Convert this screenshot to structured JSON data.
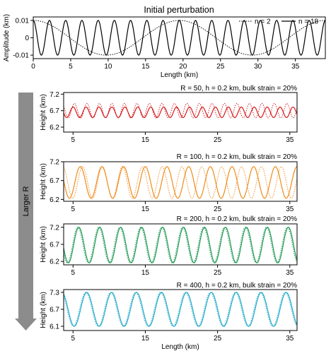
{
  "chart_data": [
    {
      "type": "line",
      "title": "Initial perturbation",
      "xlabel": "Length (km)",
      "ylabel": "Amplitude (km)",
      "xlim": [
        0,
        39
      ],
      "ylim": [
        -0.012,
        0.012
      ],
      "xticks": [
        "0",
        "5",
        "10",
        "15",
        "20",
        "25",
        "30",
        "35"
      ],
      "yticks": [
        "0.01",
        "0",
        "-0.01"
      ],
      "legend_position": "top-right",
      "series": [
        {
          "name": "n = 2",
          "style": "dotted",
          "color": "#000000",
          "wavelength_km": 19.5,
          "amplitude_km": 0.01,
          "phase": "cosine"
        },
        {
          "name": "n = 18",
          "style": "solid",
          "color": "#000000",
          "wavelength_km": 2.1667,
          "amplitude_km": 0.01,
          "phase": "cosine"
        }
      ]
    },
    {
      "type": "line",
      "title": "R = 50, h = 0.2 km, bulk strain = 20%",
      "ylabel": "Height (km)",
      "xlim": [
        3.7,
        36
      ],
      "ylim": [
        6.05,
        7.25
      ],
      "xticks": [
        "5",
        "15",
        "25",
        "35"
      ],
      "yticks": [
        "7.2",
        "6.7",
        "6.2"
      ],
      "color": "#d7191c",
      "series": [
        {
          "style": "dotted",
          "mean": 6.7,
          "amplitude": 0.22,
          "wavelength_km": 1.73,
          "phase": 0.0
        },
        {
          "style": "solid",
          "mean": 6.65,
          "amplitude": 0.16,
          "wavelength_km": 1.79,
          "phase": 1.2
        }
      ]
    },
    {
      "type": "line",
      "title": "R = 100, h = 0.2 km, bulk strain = 20%",
      "ylabel": "Height (km)",
      "xlim": [
        3.7,
        36
      ],
      "ylim": [
        6.15,
        7.2
      ],
      "xticks": [
        "5",
        "15",
        "25",
        "35"
      ],
      "yticks": [
        "7.2",
        "6.7",
        "6.2"
      ],
      "color": "#ef8a17",
      "series": [
        {
          "style": "dotted",
          "mean": 6.65,
          "amplitude": 0.42,
          "wavelength_km": 2.75,
          "phase": -0.3
        },
        {
          "style": "solid",
          "mean": 6.65,
          "amplitude": 0.42,
          "wavelength_km": 3.0,
          "phase": 0.0
        }
      ]
    },
    {
      "type": "line",
      "title": "R = 200, h = 0.2 km, bulk strain = 20%",
      "ylabel": "Height (km)",
      "xlim": [
        3.7,
        36
      ],
      "ylim": [
        6.1,
        7.3
      ],
      "xticks": [
        "5",
        "15",
        "25",
        "35"
      ],
      "yticks": [
        "7.2",
        "6.7",
        "6.2"
      ],
      "color": "#1a9850",
      "series": [
        {
          "style": "dotted",
          "mean": 6.68,
          "amplitude": 0.52,
          "wavelength_km": 2.9,
          "phase": 0.05
        },
        {
          "style": "solid",
          "mean": 6.68,
          "amplitude": 0.52,
          "wavelength_km": 2.9,
          "phase": 0.0
        }
      ]
    },
    {
      "type": "line",
      "title": "R = 400, h = 0.2 km, bulk strain = 20%",
      "xlabel": "Length (km)",
      "ylabel": "Height (km)",
      "xlim": [
        3.7,
        36
      ],
      "ylim": [
        5.95,
        7.4
      ],
      "xticks": [
        "5",
        "15",
        "25",
        "35"
      ],
      "yticks": [
        "7.3",
        "6.7",
        "6.1"
      ],
      "color": "#1fa9c9",
      "series": [
        {
          "style": "dotted",
          "mean": 6.7,
          "amplitude": 0.6,
          "wavelength_km": 3.45,
          "phase": 0.04
        },
        {
          "style": "solid",
          "mean": 6.7,
          "amplitude": 0.6,
          "wavelength_km": 3.45,
          "phase": 0.0
        }
      ]
    }
  ],
  "side_label": "Larger R"
}
